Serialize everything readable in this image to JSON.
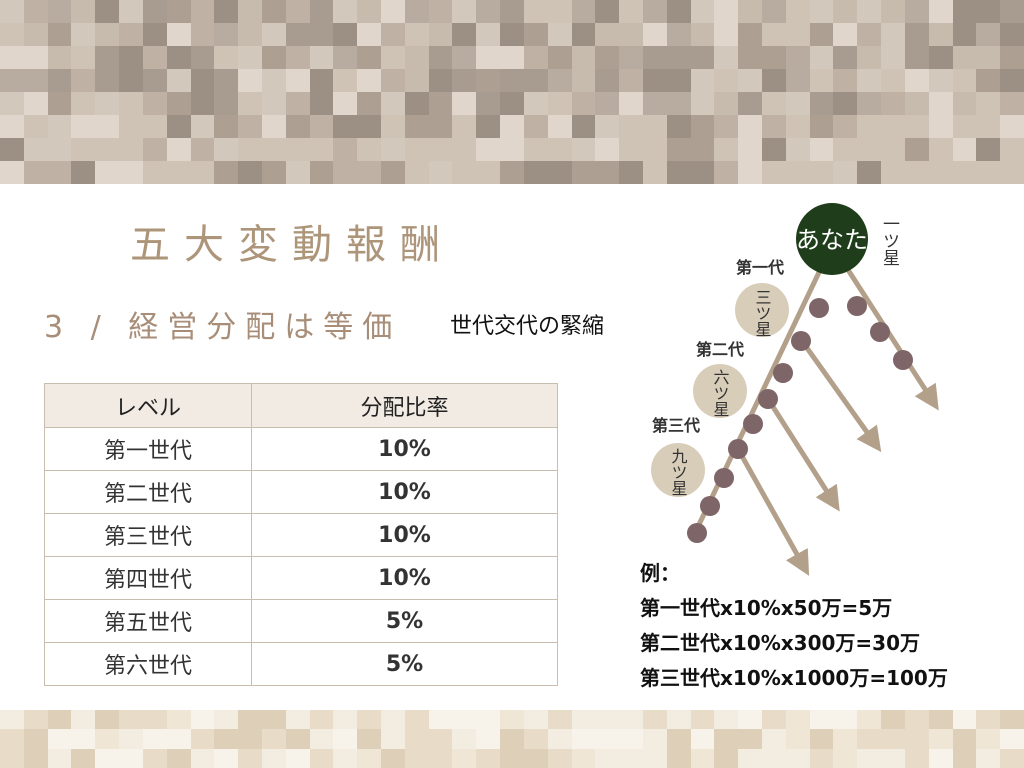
{
  "header": {
    "title": "五大変動報酬",
    "subtitle": "3 / 経営分配は等価",
    "subtitle_note": "世代交代の緊縮"
  },
  "table": {
    "headers": [
      "レベル",
      "分配比率"
    ],
    "rows": [
      {
        "level": "第一世代",
        "rate": "10%"
      },
      {
        "level": "第二世代",
        "rate": "10%"
      },
      {
        "level": "第三世代",
        "rate": "10%"
      },
      {
        "level": "第四世代",
        "rate": "10%"
      },
      {
        "level": "第五世代",
        "rate": "5%"
      },
      {
        "level": "第六世代",
        "rate": "5%"
      }
    ]
  },
  "diagram": {
    "you_label": "あなた",
    "star_one": "一ツ星",
    "gen1_label": "第一代",
    "gen1_star": "三ツ星",
    "gen2_label": "第二代",
    "gen2_star": "六ツ星",
    "gen3_label": "第三代",
    "gen3_star": "九ツ星"
  },
  "example": {
    "heading": "例：",
    "lines": [
      "第一世代x10%x50万=5万",
      "第二世代x10%x300万=30万",
      "第三世代x10%x1000万=100万"
    ]
  },
  "colors": {
    "accent": "#ad957a",
    "dark_green": "#1f3d1a",
    "node": "#7e6567",
    "arrow": "#b3a08a",
    "star_bubble": "#d8cdb8"
  }
}
